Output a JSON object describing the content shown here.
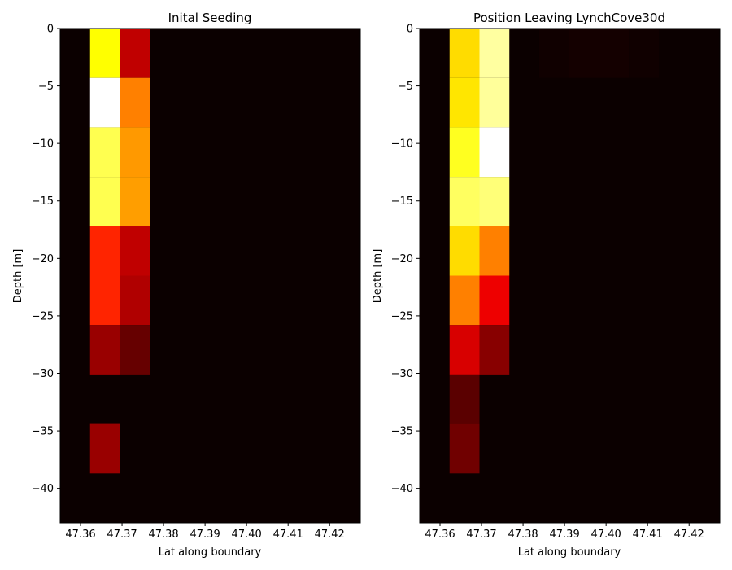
{
  "chart_data": [
    {
      "type": "heatmap",
      "title": "Inital Seeding",
      "xlabel": "Lat along boundary",
      "ylabel": "Depth [m]",
      "xlim": [
        47.3551,
        47.4274
      ],
      "ylim": [
        -43,
        0
      ],
      "xticks": [
        "47.36",
        "47.37",
        "47.38",
        "47.39",
        "47.40",
        "47.41",
        "47.42"
      ],
      "xtick_values": [
        47.36,
        47.37,
        47.38,
        47.39,
        47.4,
        47.41,
        47.42
      ],
      "yticks": [
        "0",
        "−5",
        "−10",
        "−15",
        "−20",
        "−25",
        "−30",
        "−35",
        "−40"
      ],
      "ytick_values": [
        0,
        -5,
        -10,
        -15,
        -20,
        -25,
        -30,
        -35,
        -40
      ],
      "colormap": "hot",
      "background_color": "#0b0000",
      "cells": [
        {
          "lat": [
            47.3623,
            47.3695
          ],
          "depth": [
            -4.3,
            0
          ],
          "color": "#ffff00"
        },
        {
          "lat": [
            47.3695,
            47.3767
          ],
          "depth": [
            -4.3,
            0
          ],
          "color": "#c00000"
        },
        {
          "lat": [
            47.3623,
            47.3695
          ],
          "depth": [
            -8.6,
            -4.3
          ],
          "color": "#ffffff"
        },
        {
          "lat": [
            47.3695,
            47.3767
          ],
          "depth": [
            -8.6,
            -4.3
          ],
          "color": "#ff8000"
        },
        {
          "lat": [
            47.3623,
            47.3695
          ],
          "depth": [
            -12.9,
            -8.6
          ],
          "color": "#ffff50"
        },
        {
          "lat": [
            47.3695,
            47.3767
          ],
          "depth": [
            -12.9,
            -8.6
          ],
          "color": "#ff9900"
        },
        {
          "lat": [
            47.3623,
            47.3695
          ],
          "depth": [
            -17.2,
            -12.9
          ],
          "color": "#ffff50"
        },
        {
          "lat": [
            47.3695,
            47.3767
          ],
          "depth": [
            -17.2,
            -12.9
          ],
          "color": "#ff9e00"
        },
        {
          "lat": [
            47.3623,
            47.3695
          ],
          "depth": [
            -21.5,
            -17.2
          ],
          "color": "#ff2400"
        },
        {
          "lat": [
            47.3695,
            47.3767
          ],
          "depth": [
            -21.5,
            -17.2
          ],
          "color": "#c00000"
        },
        {
          "lat": [
            47.3623,
            47.3695
          ],
          "depth": [
            -25.8,
            -21.5
          ],
          "color": "#ff2400"
        },
        {
          "lat": [
            47.3695,
            47.3767
          ],
          "depth": [
            -25.8,
            -21.5
          ],
          "color": "#b00000"
        },
        {
          "lat": [
            47.3623,
            47.3695
          ],
          "depth": [
            -30.1,
            -25.8
          ],
          "color": "#990000"
        },
        {
          "lat": [
            47.3695,
            47.3767
          ],
          "depth": [
            -30.1,
            -25.8
          ],
          "color": "#660000"
        },
        {
          "lat": [
            47.3623,
            47.3695
          ],
          "depth": [
            -38.7,
            -34.4
          ],
          "color": "#990000"
        }
      ]
    },
    {
      "type": "heatmap",
      "title": "Position Leaving LynchCove30d",
      "xlabel": "Lat along boundary",
      "ylabel": "Depth [m]",
      "xlim": [
        47.3551,
        47.4274
      ],
      "ylim": [
        -43,
        0
      ],
      "xticks": [
        "47.36",
        "47.37",
        "47.38",
        "47.39",
        "47.40",
        "47.41",
        "47.42"
      ],
      "xtick_values": [
        47.36,
        47.37,
        47.38,
        47.39,
        47.4,
        47.41,
        47.42
      ],
      "yticks": [
        "0",
        "−5",
        "−10",
        "−15",
        "−20",
        "−25",
        "−30",
        "−35",
        "−40"
      ],
      "ytick_values": [
        0,
        -5,
        -10,
        -15,
        -20,
        -25,
        -30,
        -35,
        -40
      ],
      "colormap": "hot",
      "background_color": "#0b0000",
      "cells": [
        {
          "lat": [
            47.3623,
            47.3695
          ],
          "depth": [
            -4.3,
            0
          ],
          "color": "#ffdc00"
        },
        {
          "lat": [
            47.3695,
            47.3767
          ],
          "depth": [
            -4.3,
            0
          ],
          "color": "#ffffa0"
        },
        {
          "lat": [
            47.3839,
            47.3911
          ],
          "depth": [
            -4.3,
            0
          ],
          "color": "#100000"
        },
        {
          "lat": [
            47.3911,
            47.3983
          ],
          "depth": [
            -4.3,
            0
          ],
          "color": "#140000"
        },
        {
          "lat": [
            47.3983,
            47.4055
          ],
          "depth": [
            -4.3,
            0
          ],
          "color": "#140000"
        },
        {
          "lat": [
            47.4055,
            47.4127
          ],
          "depth": [
            -4.3,
            0
          ],
          "color": "#100000"
        },
        {
          "lat": [
            47.3623,
            47.3695
          ],
          "depth": [
            -8.6,
            -4.3
          ],
          "color": "#ffe600"
        },
        {
          "lat": [
            47.3695,
            47.3767
          ],
          "depth": [
            -8.6,
            -4.3
          ],
          "color": "#ffff9a"
        },
        {
          "lat": [
            47.3623,
            47.3695
          ],
          "depth": [
            -12.9,
            -8.6
          ],
          "color": "#ffff20"
        },
        {
          "lat": [
            47.3695,
            47.3767
          ],
          "depth": [
            -12.9,
            -8.6
          ],
          "color": "#ffffff"
        },
        {
          "lat": [
            47.3623,
            47.3695
          ],
          "depth": [
            -17.2,
            -12.9
          ],
          "color": "#ffff60"
        },
        {
          "lat": [
            47.3695,
            47.3767
          ],
          "depth": [
            -17.2,
            -12.9
          ],
          "color": "#ffff78"
        },
        {
          "lat": [
            47.3623,
            47.3695
          ],
          "depth": [
            -21.5,
            -17.2
          ],
          "color": "#ffdc00"
        },
        {
          "lat": [
            47.3695,
            47.3767
          ],
          "depth": [
            -21.5,
            -17.2
          ],
          "color": "#ff8000"
        },
        {
          "lat": [
            47.3623,
            47.3695
          ],
          "depth": [
            -25.8,
            -21.5
          ],
          "color": "#ff8000"
        },
        {
          "lat": [
            47.3695,
            47.3767
          ],
          "depth": [
            -25.8,
            -21.5
          ],
          "color": "#ee0000"
        },
        {
          "lat": [
            47.3623,
            47.3695
          ],
          "depth": [
            -30.1,
            -25.8
          ],
          "color": "#d80000"
        },
        {
          "lat": [
            47.3695,
            47.3767
          ],
          "depth": [
            -30.1,
            -25.8
          ],
          "color": "#880000"
        },
        {
          "lat": [
            47.3623,
            47.3695
          ],
          "depth": [
            -34.4,
            -30.1
          ],
          "color": "#5a0000"
        },
        {
          "lat": [
            47.3623,
            47.3695
          ],
          "depth": [
            -38.7,
            -34.4
          ],
          "color": "#700000"
        }
      ]
    }
  ]
}
